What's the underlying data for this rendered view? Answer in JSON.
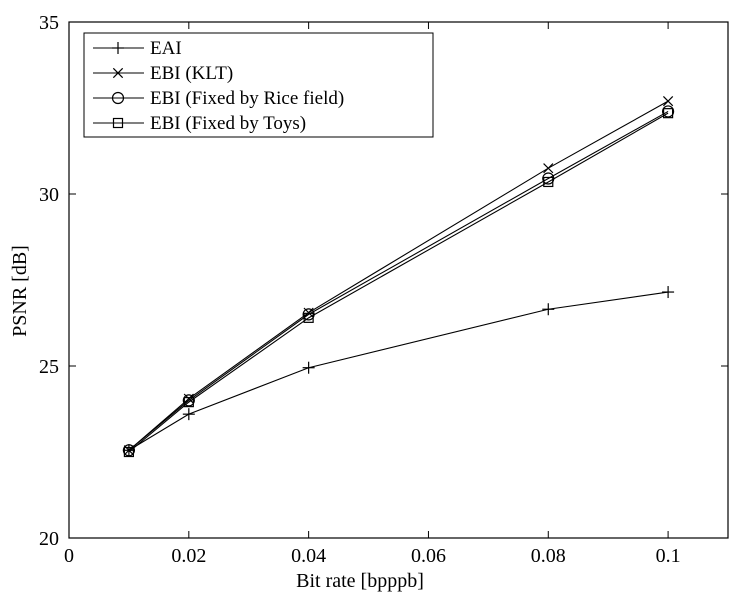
{
  "chart_data": {
    "type": "line",
    "title": "",
    "xlabel": "Bit rate [bpppb]",
    "ylabel": "PSNR [dB]",
    "xlim": [
      0,
      0.11
    ],
    "ylim": [
      20,
      35
    ],
    "xticks": [
      0,
      0.02,
      0.04,
      0.06,
      0.08,
      0.1
    ],
    "xtick_labels": [
      "0",
      "0.02",
      "0.04",
      "0.06",
      "0.08",
      "0.1"
    ],
    "yticks": [
      20,
      25,
      30,
      35
    ],
    "ytick_labels": [
      "20",
      "25",
      "30",
      "35"
    ],
    "grid": false,
    "legend_position": "top-left",
    "x": [
      0.01,
      0.02,
      0.04,
      0.08,
      0.1
    ],
    "series": [
      {
        "name": "EAI",
        "marker": "plus",
        "values": [
          22.55,
          23.6,
          24.95,
          26.65,
          27.15
        ]
      },
      {
        "name": "EBI (KLT)",
        "marker": "x",
        "values": [
          22.55,
          24.05,
          26.55,
          30.75,
          32.7
        ]
      },
      {
        "name": "EBI (Fixed by Rice field)",
        "marker": "circle",
        "values": [
          22.55,
          24.0,
          26.5,
          30.45,
          32.4
        ]
      },
      {
        "name": "EBI (Fixed by Toys)",
        "marker": "square",
        "values": [
          22.5,
          23.95,
          26.4,
          30.35,
          32.35
        ]
      }
    ]
  }
}
